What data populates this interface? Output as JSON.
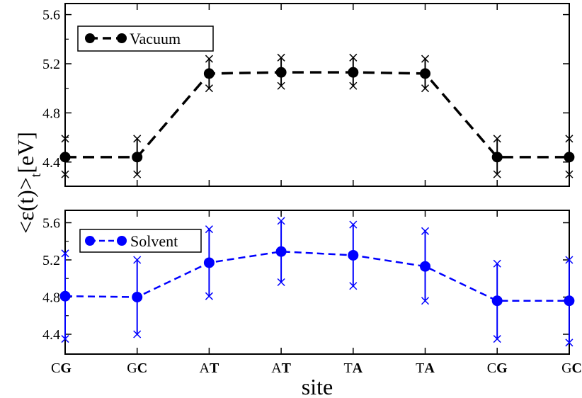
{
  "chart_data": [
    {
      "type": "line",
      "panel": "top",
      "series": [
        {
          "name": "Vacuum",
          "color": "#000000",
          "values": [
            4.44,
            4.44,
            5.12,
            5.13,
            5.13,
            5.12,
            4.44,
            4.44
          ],
          "err_upper": [
            4.59,
            4.59,
            5.24,
            5.25,
            5.25,
            5.24,
            4.59,
            4.59
          ],
          "err_lower": [
            4.3,
            4.3,
            5.0,
            5.02,
            5.02,
            5.0,
            4.3,
            4.3
          ]
        }
      ],
      "ylim": [
        4.2,
        5.75
      ],
      "yticks": [
        "4.4",
        "4.8",
        "5.2",
        "5.6"
      ],
      "legend_placement": "top-left"
    },
    {
      "type": "line",
      "panel": "bottom",
      "series": [
        {
          "name": "Solvent",
          "color": "#0000ff",
          "values": [
            4.81,
            4.8,
            5.17,
            5.29,
            5.25,
            5.13,
            4.76,
            4.76
          ],
          "err_upper": [
            5.27,
            5.2,
            5.53,
            5.62,
            5.58,
            5.51,
            5.16,
            5.2
          ],
          "err_lower": [
            4.35,
            4.4,
            4.81,
            4.96,
            4.92,
            4.76,
            4.35,
            4.31
          ]
        }
      ],
      "ylim": [
        4.2,
        5.75
      ],
      "yticks": [
        "4.4",
        "4.8",
        "5.2",
        "5.6"
      ],
      "legend_placement": "top-left"
    }
  ],
  "categories": [
    {
      "plain": "C",
      "bold": "G"
    },
    {
      "plain": "G",
      "bold": "C"
    },
    {
      "plain": "A",
      "bold": "T"
    },
    {
      "plain": "A",
      "bold": "T"
    },
    {
      "plain": "T",
      "bold": "A"
    },
    {
      "plain": "T",
      "bold": "A"
    },
    {
      "plain": "C",
      "bold": "G"
    },
    {
      "plain": "G",
      "bold": "C"
    }
  ],
  "axes": {
    "xlabel": "site",
    "ylabel_main": "<ε(t)>",
    "ylabel_sub": "t",
    "ylabel_unit": "[eV]"
  }
}
